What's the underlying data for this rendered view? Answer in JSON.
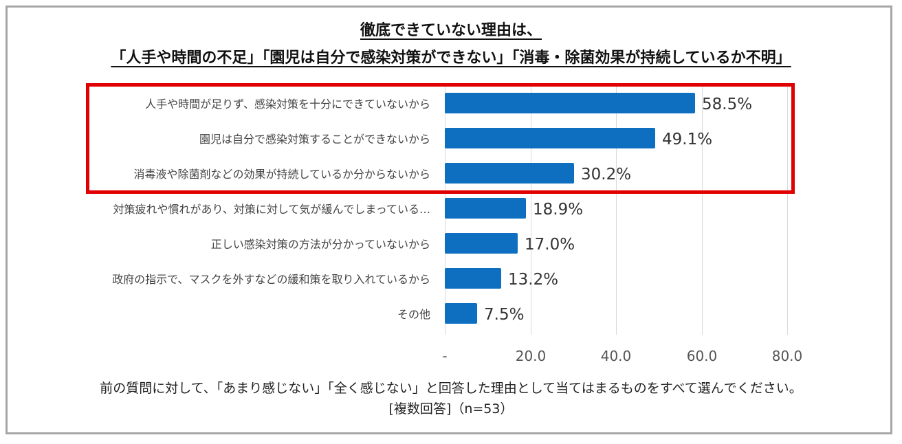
{
  "chart_data": {
    "type": "bar",
    "orientation": "horizontal",
    "title_line1": "徹底できていない理由は、",
    "title_line2": "「人手や時間の不足」「園児は自分で感染対策ができない」「消毒・除菌効果が持続しているか不明」",
    "categories": [
      "人手や時間が足りず、感染対策を十分にできていないから",
      "園児は自分で感染対策することができないから",
      "消毒液や除菌剤などの効果が持続しているか分からないから",
      "対策疲れや慣れがあり、対策に対して気が緩んでしまっている…",
      "正しい感染対策の方法が分かっていないから",
      "政府の指示で、マスクを外すなどの緩和策を取り入れているから",
      "その他"
    ],
    "values": [
      58.5,
      49.1,
      30.2,
      18.9,
      17.0,
      13.2,
      7.5
    ],
    "value_labels": [
      "58.5%",
      "49.1%",
      "30.2%",
      "18.9%",
      "17.0%",
      "13.2%",
      "7.5%"
    ],
    "xlim": [
      0,
      80
    ],
    "x_ticks": [
      0,
      20,
      40,
      60,
      80
    ],
    "x_tick_labels": [
      "-",
      "20.0",
      "40.0",
      "60.0",
      "80.0"
    ],
    "bar_color": "#0e6fc1",
    "highlight_color": "#e00000",
    "highlighted_categories": [
      0,
      1,
      2
    ],
    "footnote_line1": "前の質問に対して、「あまり感じない」「全く感じない」と回答した理由として当てはまるものをすべて選んでください。",
    "footnote_line2": "[複数回答]（n=53）"
  }
}
